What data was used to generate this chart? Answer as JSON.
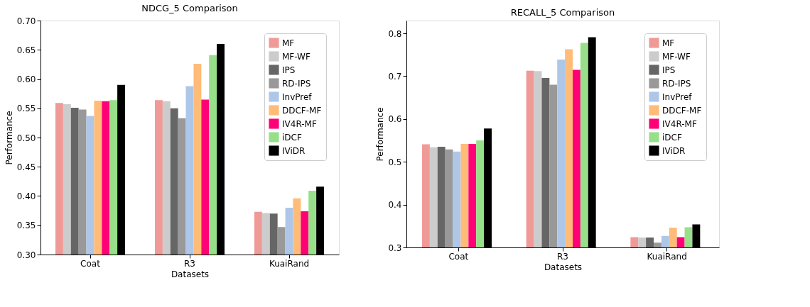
{
  "chart_data": [
    {
      "type": "bar",
      "title": "NDCG_5 Comparison",
      "xlabel": "Datasets",
      "ylabel": "Performance",
      "categories": [
        "Coat",
        "R3",
        "KuaiRand"
      ],
      "ylim": [
        0.3,
        0.7
      ],
      "yticks": [
        {
          "value": 0.3,
          "label": "0.30"
        },
        0.35,
        {
          "value": 0.4,
          "label": "0.40"
        },
        0.45,
        {
          "value": 0.5,
          "label": "0.50"
        },
        0.55,
        {
          "value": 0.6,
          "label": "0.60"
        },
        0.65,
        {
          "value": 0.7,
          "label": "0.70"
        }
      ],
      "grid": false,
      "legend": "top right",
      "series": [
        {
          "name": "MF",
          "color": "#f09a98",
          "values": [
            0.559,
            0.564,
            0.373
          ]
        },
        {
          "name": "MF-WF",
          "color": "#cccccc",
          "values": [
            0.557,
            0.562,
            0.371
          ]
        },
        {
          "name": "IPS",
          "color": "#666666",
          "values": [
            0.551,
            0.55,
            0.37
          ]
        },
        {
          "name": "RD-IPS",
          "color": "#999999",
          "values": [
            0.548,
            0.533,
            0.347
          ]
        },
        {
          "name": "InvPref",
          "color": "#aec7e8",
          "values": [
            0.537,
            0.588,
            0.38
          ]
        },
        {
          "name": "DDCF-MF",
          "color": "#ffbb78",
          "values": [
            0.563,
            0.626,
            0.396
          ]
        },
        {
          "name": "IV4R-MF",
          "color": "#ff0077",
          "values": [
            0.562,
            0.565,
            0.374
          ]
        },
        {
          "name": "iDCF",
          "color": "#98df8a",
          "values": [
            0.564,
            0.641,
            0.409
          ]
        },
        {
          "name": "IViDR",
          "color": "#000000",
          "values": [
            0.59,
            0.66,
            0.416
          ]
        }
      ]
    },
    {
      "type": "bar",
      "title": "RECALL_5 Comparison",
      "xlabel": "Datasets",
      "ylabel": "Performance",
      "categories": [
        "Coat",
        "R3",
        "KuaiRand"
      ],
      "ylim": [
        0.3,
        0.83
      ],
      "yticks": [
        0.3,
        0.4,
        0.5,
        0.6,
        0.7,
        0.8
      ],
      "grid": false,
      "legend": "top right",
      "series": [
        {
          "name": "MF",
          "color": "#f09a98",
          "values": [
            0.541,
            0.713,
            0.324
          ]
        },
        {
          "name": "MF-WF",
          "color": "#cccccc",
          "values": [
            0.534,
            0.712,
            0.323
          ]
        },
        {
          "name": "IPS",
          "color": "#666666",
          "values": [
            0.535,
            0.696,
            0.323
          ]
        },
        {
          "name": "RD-IPS",
          "color": "#999999",
          "values": [
            0.529,
            0.68,
            0.311
          ]
        },
        {
          "name": "InvPref",
          "color": "#aec7e8",
          "values": [
            0.524,
            0.739,
            0.327
          ]
        },
        {
          "name": "DDCF-MF",
          "color": "#ffbb78",
          "values": [
            0.542,
            0.763,
            0.346
          ]
        },
        {
          "name": "IV4R-MF",
          "color": "#ff0077",
          "values": [
            0.542,
            0.715,
            0.324
          ]
        },
        {
          "name": "iDCF",
          "color": "#98df8a",
          "values": [
            0.55,
            0.778,
            0.347
          ]
        },
        {
          "name": "IViDR",
          "color": "#000000",
          "values": [
            0.578,
            0.791,
            0.354
          ]
        }
      ]
    }
  ]
}
